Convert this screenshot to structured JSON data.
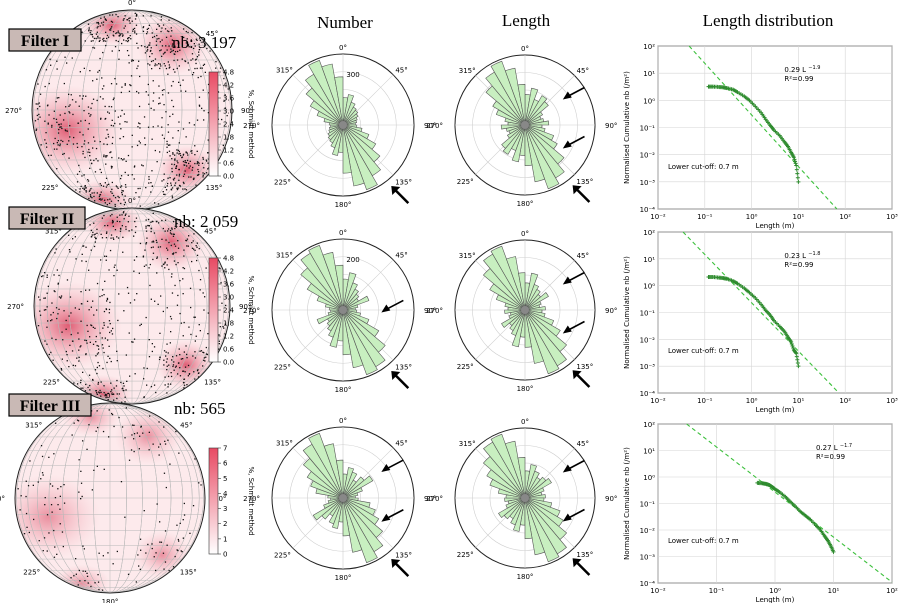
{
  "headers": {
    "number": "Number",
    "length": "Length",
    "distribution": "Length distribution"
  },
  "colors": {
    "density_high": "#e84a63",
    "density_low": "#ffffff",
    "rose_fill": "#c8efc0",
    "rose_stroke": "#555555",
    "powerlaw_points": "#2e8b2e",
    "fit_line": "#3cc03c",
    "filter_box": "#c9b9b5"
  },
  "rose_labels": [
    "0°",
    "45°",
    "90°",
    "135°",
    "180°",
    "225°",
    "270°",
    "315°"
  ],
  "colorbar_label": "%, Schmidt method",
  "axes_text": {
    "xlabel": "Length (m)",
    "ylabel": "Normalised Cumulative nb (/m²)",
    "xticks": [
      "10⁻²",
      "10⁻¹",
      "10⁰",
      "10¹",
      "10²",
      "10³"
    ],
    "yticks": [
      "10⁻⁴",
      "10⁻³",
      "10⁻²",
      "10⁻¹",
      "10⁰",
      "10¹",
      "10²"
    ],
    "cutoff": "Lower cut-off: 0.7 m"
  },
  "filters": [
    {
      "name": "Filter I",
      "nb": "nb: 3 197",
      "colorbar_ticks": [
        "4.8",
        "4.2",
        "3.6",
        "3.0",
        "2.4",
        "1.8",
        "1.2",
        "0.6",
        "0.0"
      ],
      "rose_number_ring": "300"
    },
    {
      "name": "Filter II",
      "nb": "nb: 2 059",
      "colorbar_ticks": [
        "4.8",
        "4.2",
        "3.6",
        "3.0",
        "2.4",
        "1.8",
        "1.2",
        "0.6",
        "0.0"
      ],
      "rose_number_ring": "200"
    },
    {
      "name": "Filter III",
      "nb": "nb: 565",
      "colorbar_ticks": [
        "7",
        "6",
        "5",
        "4",
        "3",
        "2",
        "1",
        "0"
      ],
      "rose_number_ring": ""
    }
  ],
  "chart_data": [
    {
      "type": "scatter",
      "title": "Length distribution",
      "panel": "Filter I",
      "xlabel": "Length (m)",
      "ylabel": "Normalised Cumulative nb (/m²)",
      "xscale": "log",
      "yscale": "log",
      "xlim": [
        0.01,
        1000
      ],
      "ylim": [
        0.0001,
        100
      ],
      "grid": true,
      "fit_label": "0.29 L",
      "fit_exponent": "−1.9",
      "r2": "R²=0.99",
      "cutoff_text": "Lower cut-off: 0.7 m",
      "fit": {
        "a": 0.29,
        "b": -1.9
      },
      "series": [
        {
          "x": [
            0.12,
            0.15,
            0.2,
            0.25,
            0.3,
            0.4,
            0.5,
            0.7,
            0.9,
            1.2,
            1.6,
            2,
            2.5,
            3,
            4,
            5,
            6,
            7,
            8,
            9,
            10
          ],
          "y": [
            3.2,
            3.2,
            3.1,
            3.0,
            2.8,
            2.5,
            2.0,
            1.4,
            1.0,
            0.6,
            0.35,
            0.2,
            0.12,
            0.08,
            0.05,
            0.03,
            0.02,
            0.012,
            0.008,
            0.004,
            0.001
          ]
        }
      ]
    },
    {
      "type": "scatter",
      "title": "Length distribution",
      "panel": "Filter II",
      "xlabel": "Length (m)",
      "ylabel": "Normalised Cumulative nb (/m²)",
      "xscale": "log",
      "yscale": "log",
      "xlim": [
        0.01,
        1000
      ],
      "ylim": [
        0.0001,
        100
      ],
      "grid": true,
      "fit_label": "0.23 L",
      "fit_exponent": "−1.8",
      "r2": "R²=0.99",
      "cutoff_text": "Lower cut-off: 0.7 m",
      "fit": {
        "a": 0.23,
        "b": -1.8
      },
      "series": [
        {
          "x": [
            0.12,
            0.15,
            0.2,
            0.25,
            0.3,
            0.4,
            0.5,
            0.7,
            0.9,
            1.2,
            1.6,
            2,
            2.5,
            3,
            4,
            5,
            6,
            7,
            8,
            9,
            10
          ],
          "y": [
            2.1,
            2.1,
            2.0,
            1.9,
            1.8,
            1.5,
            1.2,
            0.8,
            0.55,
            0.35,
            0.2,
            0.12,
            0.08,
            0.05,
            0.03,
            0.02,
            0.012,
            0.008,
            0.004,
            0.003,
            0.001
          ]
        }
      ]
    },
    {
      "type": "scatter",
      "title": "Length distribution",
      "panel": "Filter III",
      "xlabel": "Length (m)",
      "ylabel": "Normalised Cumulative nb (/m²)",
      "xscale": "log",
      "yscale": "log",
      "xlim": [
        0.01,
        100
      ],
      "ylim": [
        0.0001,
        100
      ],
      "grid": true,
      "fit_label": "0.27 L",
      "fit_exponent": "−1.7",
      "r2": "R²=0.99",
      "cutoff_text": "Lower cut-off: 0.7 m",
      "fit": {
        "a": 0.27,
        "b": -1.7
      },
      "series": [
        {
          "x": [
            0.5,
            0.6,
            0.7,
            0.8,
            0.9,
            1.0,
            1.2,
            1.5,
            1.8,
            2.2,
            2.7,
            3.3,
            4,
            5,
            6,
            7,
            8,
            9,
            10
          ],
          "y": [
            0.6,
            0.58,
            0.55,
            0.5,
            0.42,
            0.35,
            0.27,
            0.18,
            0.12,
            0.08,
            0.05,
            0.035,
            0.025,
            0.015,
            0.01,
            0.006,
            0.004,
            0.0025,
            0.0015
          ]
        }
      ]
    }
  ]
}
